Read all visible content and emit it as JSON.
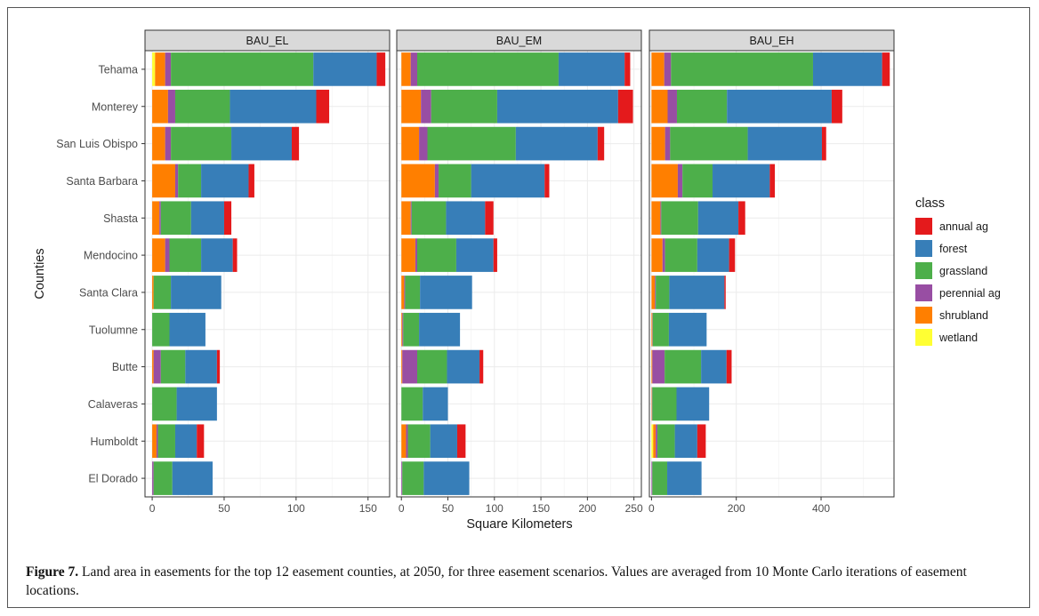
{
  "caption": {
    "label": "Figure 7.",
    "text": " Land area in easements for the top 12 easement counties, at 2050, for three easement scenarios. Values are averaged from 10 Monte Carlo iterations of easement locations."
  },
  "chart_data": {
    "type": "bar",
    "orientation": "horizontal",
    "stacked": true,
    "xlabel": "Square Kilometers",
    "ylabel": "Counties",
    "grid": true,
    "legend": {
      "title": "class",
      "position": "right"
    },
    "categories": [
      "Tehama",
      "Monterey",
      "San Luis Obispo",
      "Santa Barbara",
      "Shasta",
      "Mendocino",
      "Santa Clara",
      "Tuolumne",
      "Butte",
      "Calaveras",
      "Humboldt",
      "El Dorado"
    ],
    "classes": [
      "wetland",
      "shrubland",
      "perennial ag",
      "grassland",
      "forest",
      "annual ag"
    ],
    "legend_order": [
      "annual ag",
      "forest",
      "grassland",
      "perennial ag",
      "shrubland",
      "wetland"
    ],
    "colors": {
      "annual ag": "#e41a1c",
      "forest": "#377eb8",
      "grassland": "#4daf4a",
      "perennial ag": "#984ea3",
      "shrubland": "#ff7f00",
      "wetland": "#ffff33"
    },
    "panels": [
      {
        "title": "BAU_EL",
        "xlim": [
          -5,
          165
        ],
        "xticks": [
          0,
          50,
          100,
          150
        ],
        "segments": {
          "Tehama": {
            "wetland": 2,
            "shrubland": 7,
            "perennial ag": 4,
            "grassland": 99,
            "forest": 44,
            "annual ag": 6
          },
          "Monterey": {
            "wetland": 0,
            "shrubland": 11,
            "perennial ag": 5,
            "grassland": 38,
            "forest": 60,
            "annual ag": 9
          },
          "San Luis Obispo": {
            "wetland": 0,
            "shrubland": 9,
            "perennial ag": 4,
            "grassland": 42,
            "forest": 42,
            "annual ag": 5
          },
          "Santa Barbara": {
            "wetland": 0,
            "shrubland": 16,
            "perennial ag": 2,
            "grassland": 16,
            "forest": 33,
            "annual ag": 4
          },
          "Shasta": {
            "wetland": 0,
            "shrubland": 5,
            "perennial ag": 1,
            "grassland": 21,
            "forest": 23,
            "annual ag": 5
          },
          "Mendocino": {
            "wetland": 0,
            "shrubland": 9,
            "perennial ag": 3,
            "grassland": 22,
            "forest": 22,
            "annual ag": 3
          },
          "Santa Clara": {
            "wetland": 0,
            "shrubland": 1,
            "perennial ag": 0,
            "grassland": 12,
            "forest": 35,
            "annual ag": 0
          },
          "Tuolumne": {
            "wetland": 0,
            "shrubland": 0,
            "perennial ag": 0,
            "grassland": 12,
            "forest": 25,
            "annual ag": 0
          },
          "Butte": {
            "wetland": 0,
            "shrubland": 1,
            "perennial ag": 5,
            "grassland": 17,
            "forest": 22,
            "annual ag": 2
          },
          "Calaveras": {
            "wetland": 0,
            "shrubland": 0,
            "perennial ag": 0,
            "grassland": 17,
            "forest": 28,
            "annual ag": 0
          },
          "Humboldt": {
            "wetland": 0,
            "shrubland": 3,
            "perennial ag": 1,
            "grassland": 12,
            "forest": 15,
            "annual ag": 5
          },
          "El Dorado": {
            "wetland": 0,
            "shrubland": 0,
            "perennial ag": 1,
            "grassland": 13,
            "forest": 28,
            "annual ag": 0
          }
        }
      },
      {
        "title": "BAU_EM",
        "xlim": [
          -5,
          258
        ],
        "xticks": [
          0,
          50,
          100,
          150,
          200,
          250
        ],
        "segments": {
          "Tehama": {
            "wetland": 0,
            "shrubland": 10,
            "perennial ag": 7,
            "grassland": 152,
            "forest": 71,
            "annual ag": 6
          },
          "Monterey": {
            "wetland": 0,
            "shrubland": 21,
            "perennial ag": 11,
            "grassland": 71,
            "forest": 130,
            "annual ag": 16
          },
          "San Luis Obispo": {
            "wetland": 0,
            "shrubland": 19,
            "perennial ag": 9,
            "grassland": 95,
            "forest": 88,
            "annual ag": 7
          },
          "Santa Barbara": {
            "wetland": 0,
            "shrubland": 36,
            "perennial ag": 4,
            "grassland": 35,
            "forest": 79,
            "annual ag": 5
          },
          "Shasta": {
            "wetland": 0,
            "shrubland": 10,
            "perennial ag": 1,
            "grassland": 37,
            "forest": 42,
            "annual ag": 9
          },
          "Mendocino": {
            "wetland": 0,
            "shrubland": 15,
            "perennial ag": 2,
            "grassland": 42,
            "forest": 40,
            "annual ag": 4
          },
          "Santa Clara": {
            "wetland": 0,
            "shrubland": 3,
            "perennial ag": 1,
            "grassland": 16,
            "forest": 56,
            "annual ag": 0
          },
          "Tuolumne": {
            "wetland": 0,
            "shrubland": 1,
            "perennial ag": 1,
            "grassland": 17,
            "forest": 44,
            "annual ag": 0
          },
          "Butte": {
            "wetland": 0,
            "shrubland": 1,
            "perennial ag": 16,
            "grassland": 32,
            "forest": 35,
            "annual ag": 4
          },
          "Calaveras": {
            "wetland": 0,
            "shrubland": 0,
            "perennial ag": 0,
            "grassland": 23,
            "forest": 27,
            "annual ag": 0
          },
          "Humboldt": {
            "wetland": 0,
            "shrubland": 5,
            "perennial ag": 2,
            "grassland": 24,
            "forest": 29,
            "annual ag": 9
          },
          "El Dorado": {
            "wetland": 0,
            "shrubland": 0,
            "perennial ag": 1,
            "grassland": 23,
            "forest": 49,
            "annual ag": 0
          }
        }
      },
      {
        "title": "BAU_EH",
        "xlim": [
          -5,
          572
        ],
        "xticks": [
          0,
          200,
          400
        ],
        "segments": {
          "Tehama": {
            "wetland": 0,
            "shrubland": 30,
            "perennial ag": 16,
            "grassland": 335,
            "forest": 163,
            "annual ag": 18
          },
          "Monterey": {
            "wetland": 0,
            "shrubland": 38,
            "perennial ag": 22,
            "grassland": 118,
            "forest": 247,
            "annual ag": 25
          },
          "San Luis Obispo": {
            "wetland": 0,
            "shrubland": 32,
            "perennial ag": 12,
            "grassland": 183,
            "forest": 175,
            "annual ag": 10
          },
          "Santa Barbara": {
            "wetland": 0,
            "shrubland": 62,
            "perennial ag": 11,
            "grassland": 71,
            "forest": 135,
            "annual ag": 12
          },
          "Shasta": {
            "wetland": 0,
            "shrubland": 21,
            "perennial ag": 2,
            "grassland": 87,
            "forest": 95,
            "annual ag": 16
          },
          "Mendocino": {
            "wetland": 0,
            "shrubland": 26,
            "perennial ag": 6,
            "grassland": 76,
            "forest": 75,
            "annual ag": 14
          },
          "Santa Clara": {
            "wetland": 0,
            "shrubland": 8,
            "perennial ag": 2,
            "grassland": 32,
            "forest": 130,
            "annual ag": 3
          },
          "Tuolumne": {
            "wetland": 0,
            "shrubland": 2,
            "perennial ag": 1,
            "grassland": 38,
            "forest": 89,
            "annual ag": 0
          },
          "Butte": {
            "wetland": 0,
            "shrubland": 2,
            "perennial ag": 29,
            "grassland": 86,
            "forest": 60,
            "annual ag": 12
          },
          "Calaveras": {
            "wetland": 0,
            "shrubland": 1,
            "perennial ag": 1,
            "grassland": 57,
            "forest": 77,
            "annual ag": 0
          },
          "Humboldt": {
            "wetland": 4,
            "shrubland": 6,
            "perennial ag": 4,
            "grassland": 41,
            "forest": 53,
            "annual ag": 20
          },
          "El Dorado": {
            "wetland": 0,
            "shrubland": 0,
            "perennial ag": 2,
            "grassland": 35,
            "forest": 81,
            "annual ag": 0
          }
        }
      }
    ]
  }
}
